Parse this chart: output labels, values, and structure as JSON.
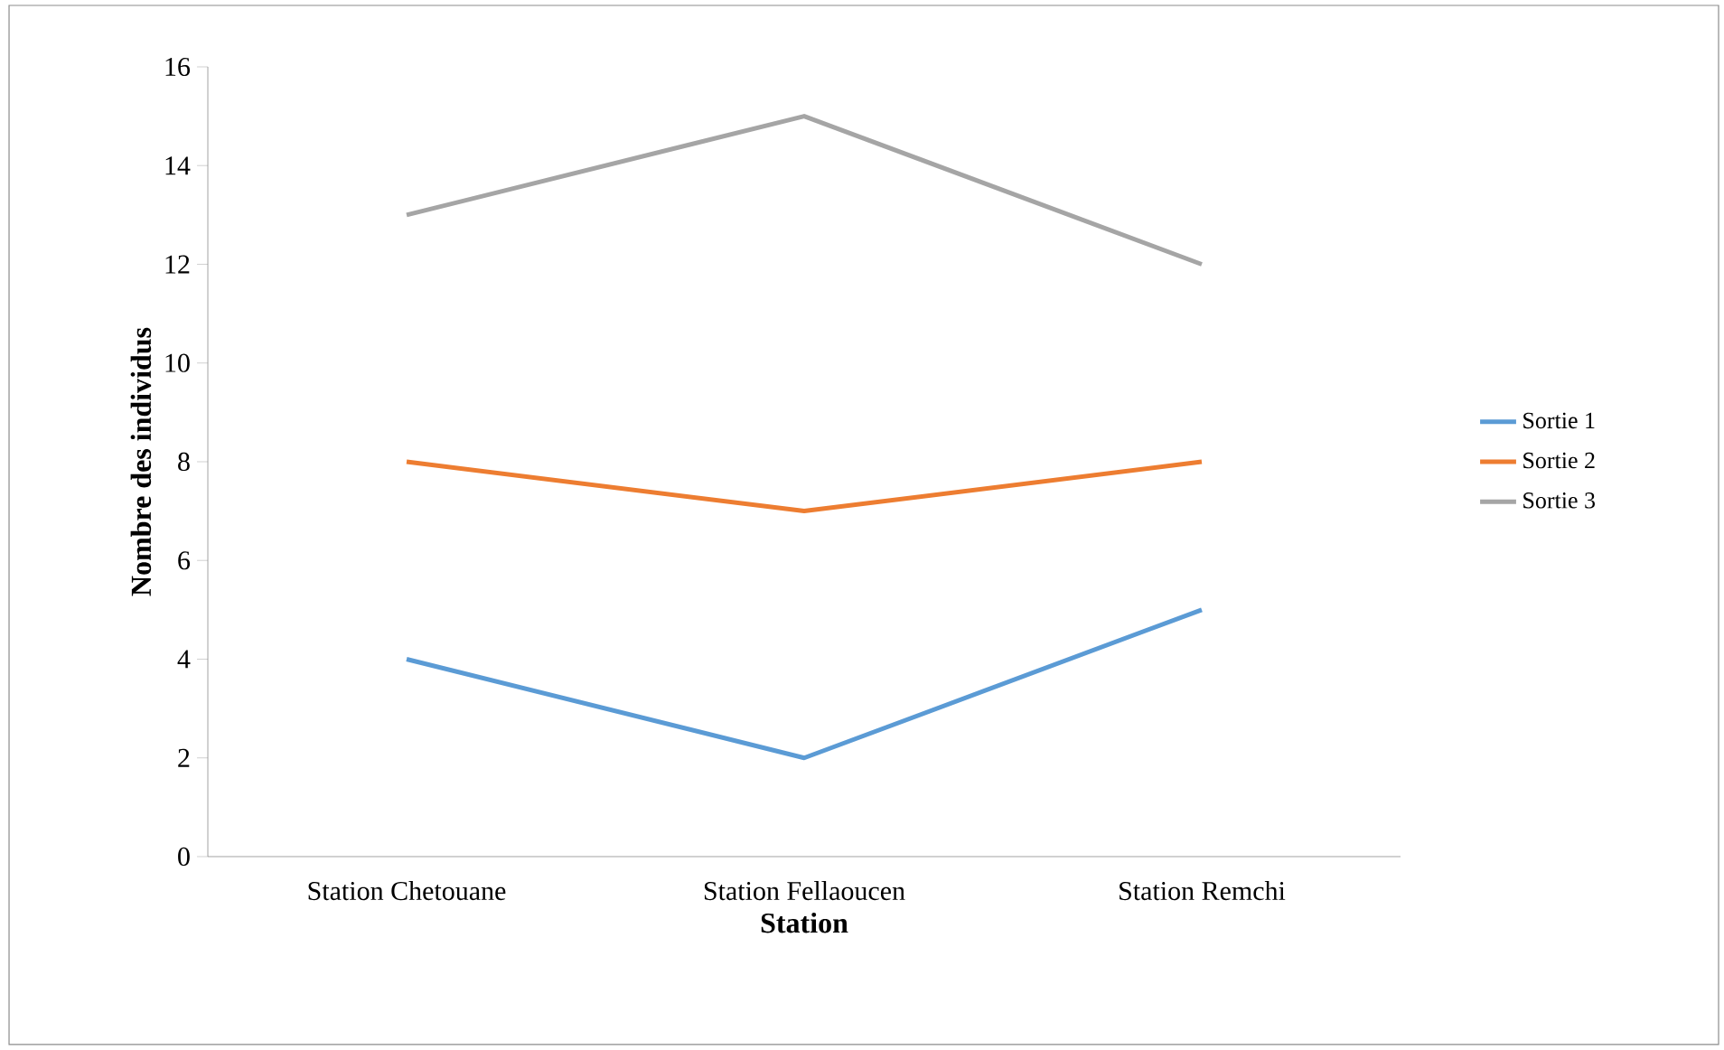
{
  "chart_data": {
    "type": "line",
    "xlabel": "Station",
    "ylabel": "Nombre des individus",
    "categories": [
      "Station Chetouane",
      "Station Fellaoucen",
      "Station Remchi"
    ],
    "series": [
      {
        "name": "Sortie 1",
        "color": "#5b9bd5",
        "values": [
          4,
          2,
          5
        ]
      },
      {
        "name": "Sortie 2",
        "color": "#ed7d31",
        "values": [
          8,
          7,
          8
        ]
      },
      {
        "name": "Sortie 3",
        "color": "#a5a5a5",
        "values": [
          13,
          15,
          12
        ]
      }
    ],
    "ylim": [
      0,
      16
    ],
    "yticks": [
      0,
      2,
      4,
      6,
      8,
      10,
      12,
      14,
      16
    ],
    "legend": "right"
  }
}
